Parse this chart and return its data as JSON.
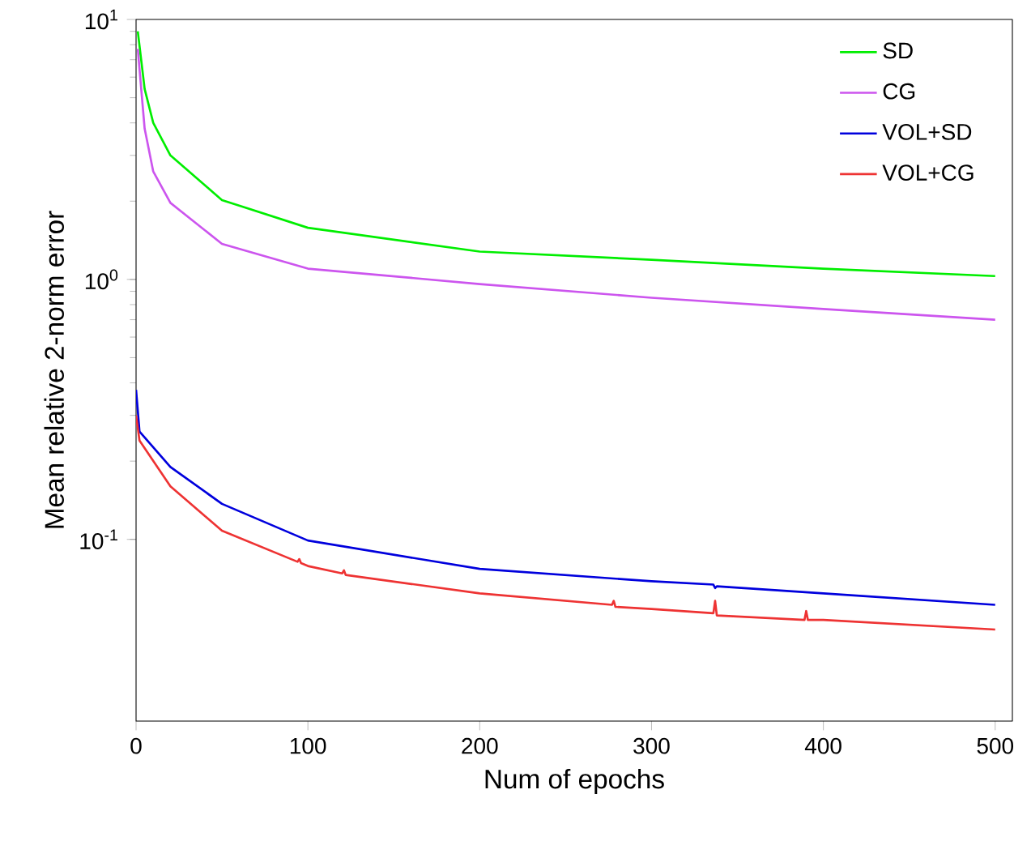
{
  "chart_data": {
    "type": "line",
    "xlabel": "Num of epochs",
    "ylabel": "Mean relative 2-norm error",
    "log": "y",
    "xlim": [
      0,
      510
    ],
    "ylim": [
      0.02,
      10
    ],
    "xticks": [
      0,
      100,
      200,
      300,
      400,
      500
    ],
    "yticks": [
      {
        "value": 0.1,
        "label": "10$^{-1}$"
      },
      {
        "value": 1,
        "label": "10$^{0}$"
      },
      {
        "value": 10,
        "label": "10$^{1}$"
      }
    ],
    "legend": "top right",
    "grid": false,
    "marker": "none",
    "line_style": "solid",
    "series": [
      {
        "name": "SD",
        "color": "#00ee00",
        "x": [
          1,
          5,
          10,
          20,
          50,
          100,
          200,
          300,
          400,
          500
        ],
        "values": [
          9,
          5.4,
          4.0,
          3.0,
          2.02,
          1.58,
          1.28,
          1.19,
          1.1,
          1.03
        ]
      },
      {
        "name": "CG",
        "color": "#cc55ee",
        "x": [
          1,
          5,
          10,
          20,
          50,
          100,
          200,
          300,
          400,
          500
        ],
        "values": [
          7.7,
          3.8,
          2.6,
          1.97,
          1.37,
          1.1,
          0.96,
          0.85,
          0.77,
          0.7
        ]
      },
      {
        "name": "VOL+SD",
        "color": "#0000dd",
        "x": [
          0,
          2,
          20,
          50,
          100,
          200,
          300,
          336,
          337,
          338,
          400,
          500
        ],
        "values": [
          0.376,
          0.26,
          0.19,
          0.137,
          0.099,
          0.077,
          0.069,
          0.067,
          0.065,
          0.066,
          0.062,
          0.056
        ]
      },
      {
        "name": "VOL+CG",
        "color": "#ee3333",
        "x": [
          0,
          2,
          20,
          50,
          94,
          95,
          96,
          100,
          120,
          121,
          122,
          200,
          277,
          278,
          279,
          300,
          336,
          337,
          338,
          389,
          390,
          391,
          400,
          500
        ],
        "values": [
          0.3,
          0.24,
          0.16,
          0.108,
          0.082,
          0.084,
          0.081,
          0.079,
          0.074,
          0.076,
          0.073,
          0.062,
          0.056,
          0.058,
          0.055,
          0.054,
          0.052,
          0.058,
          0.051,
          0.049,
          0.053,
          0.049,
          0.049,
          0.045
        ]
      }
    ]
  }
}
